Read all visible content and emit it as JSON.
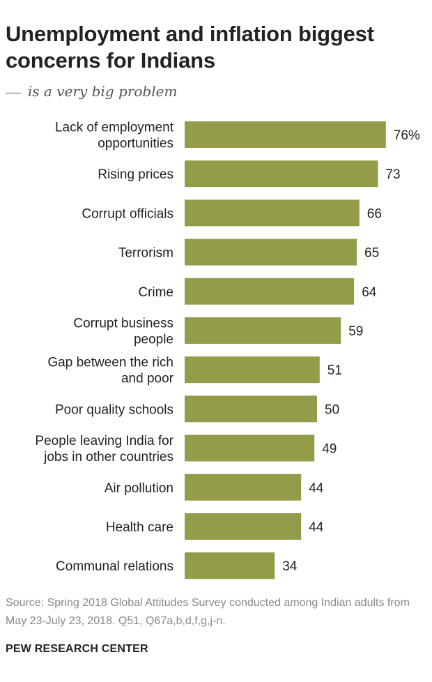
{
  "title": "Unemployment and inflation biggest concerns for Indians",
  "subtitle": "is a very big problem",
  "chart_data": {
    "type": "bar",
    "orientation": "horizontal",
    "title": "Unemployment and inflation biggest concerns for Indians",
    "subtitle": "__ is a very big problem",
    "categories": [
      [
        "Lack of employment",
        "opportunities"
      ],
      [
        "Rising prices"
      ],
      [
        "Corrupt officials"
      ],
      [
        "Terrorism"
      ],
      [
        "Crime"
      ],
      [
        "Corrupt business",
        "people"
      ],
      [
        "Gap between the rich",
        "and poor"
      ],
      [
        "Poor quality schools"
      ],
      [
        "People leaving India for",
        "jobs in other countries"
      ],
      [
        "Air pollution"
      ],
      [
        "Health care"
      ],
      [
        "Communal relations"
      ]
    ],
    "values": [
      76,
      73,
      66,
      65,
      64,
      59,
      51,
      50,
      49,
      44,
      44,
      34
    ],
    "value_labels": [
      "76%",
      "73",
      "66",
      "65",
      "64",
      "59",
      "51",
      "50",
      "49",
      "44",
      "44",
      "34"
    ],
    "unit": "%",
    "xlim": [
      0,
      100
    ],
    "bar_color": "#949b49",
    "grid": false,
    "legend": "none"
  },
  "source": "Source: Spring 2018 Global Attitudes Survey conducted among Indian adults from May 23-July 23, 2018. Q51, Q67a,b,d,f,g,j-n.",
  "brand": "PEW RESEARCH CENTER"
}
